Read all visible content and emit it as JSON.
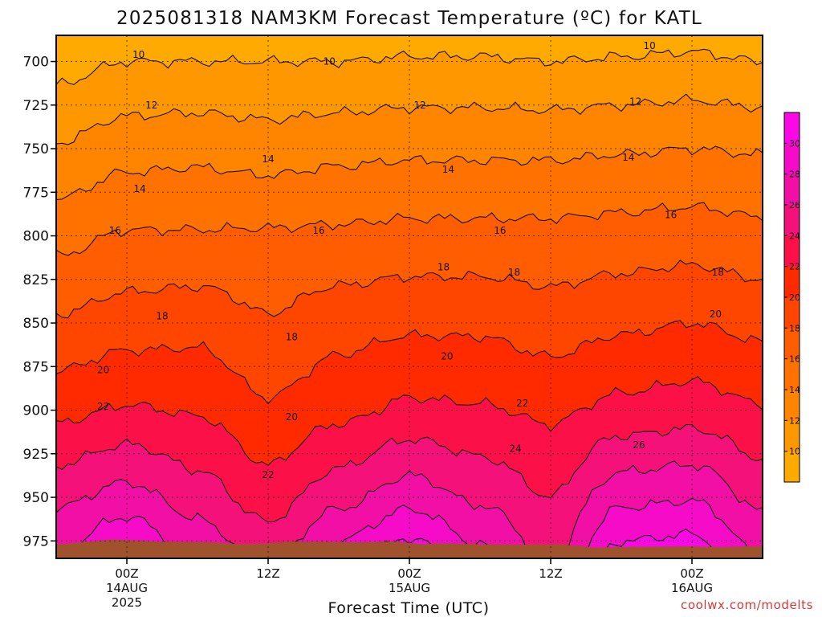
{
  "chart_data": {
    "type": "heatmap",
    "title": "2025081318 NAM3KM Forecast Temperature (ºC) for KATL",
    "xlabel": "Forecast Time (UTC)",
    "ylabel": "",
    "credit": "coolwx.com/modelts",
    "x_hours": [
      -6,
      36
    ],
    "y_pressure_levels": [
      700,
      725,
      750,
      775,
      800,
      825,
      850,
      875,
      900,
      925,
      950,
      975
    ],
    "ylim": [
      685,
      985
    ],
    "x_ticks": [
      {
        "hour": 0,
        "lines": [
          "00Z",
          "14AUG",
          "2025"
        ]
      },
      {
        "hour": 12,
        "lines": [
          "12Z"
        ]
      },
      {
        "hour": 24,
        "lines": [
          "00Z",
          "15AUG"
        ]
      },
      {
        "hour": 36,
        "lines": [
          "12Z"
        ]
      },
      {
        "hour": 48,
        "lines": [
          "00Z",
          "16AUG"
        ]
      }
    ],
    "x_range_hours": [
      -6,
      54
    ],
    "contour_interval": 2,
    "colorbar_levels": [
      10,
      12,
      14,
      16,
      18,
      20,
      22,
      24,
      26,
      28,
      30
    ],
    "colorbar_colors": [
      "#ffaa00",
      "#ff9800",
      "#ff8500",
      "#ff7200",
      "#ff5d00",
      "#ff4600",
      "#ff2a00",
      "#fb1148",
      "#f5117a",
      "#f20fa6",
      "#f50bc8",
      "#fa08e6"
    ],
    "surface_color": "#a0522d",
    "temperature_profiles": [
      {
        "hour": -6,
        "levels": [
          {
            "p": 700,
            "t": 9.2
          },
          {
            "p": 750,
            "t": 12.2
          },
          {
            "p": 800,
            "t": 15.3
          },
          {
            "p": 850,
            "t": 18.3
          },
          {
            "p": 900,
            "t": 21.4
          },
          {
            "p": 950,
            "t": 25.5
          },
          {
            "p": 975,
            "t": 27.4
          }
        ]
      },
      {
        "hour": 0,
        "levels": [
          {
            "p": 700,
            "t": 10.0
          },
          {
            "p": 750,
            "t": 13.2
          },
          {
            "p": 800,
            "t": 16.2
          },
          {
            "p": 850,
            "t": 19.0
          },
          {
            "p": 900,
            "t": 22.2
          },
          {
            "p": 950,
            "t": 26.8
          },
          {
            "p": 975,
            "t": 29.5
          }
        ]
      },
      {
        "hour": 6,
        "levels": [
          {
            "p": 700,
            "t": 10.0
          },
          {
            "p": 750,
            "t": 13.4
          },
          {
            "p": 800,
            "t": 16.2
          },
          {
            "p": 850,
            "t": 19.3
          },
          {
            "p": 900,
            "t": 21.8
          },
          {
            "p": 950,
            "t": 25.0
          },
          {
            "p": 975,
            "t": 27.0
          }
        ]
      },
      {
        "hour": 12,
        "levels": [
          {
            "p": 700,
            "t": 10.0
          },
          {
            "p": 750,
            "t": 13.0
          },
          {
            "p": 800,
            "t": 16.3
          },
          {
            "p": 850,
            "t": 18.2
          },
          {
            "p": 900,
            "t": 20.3
          },
          {
            "p": 950,
            "t": 23.0
          },
          {
            "p": 975,
            "t": 24.8
          }
        ]
      },
      {
        "hour": 18,
        "levels": [
          {
            "p": 700,
            "t": 10.0
          },
          {
            "p": 750,
            "t": 13.4
          },
          {
            "p": 800,
            "t": 16.4
          },
          {
            "p": 850,
            "t": 19.2
          },
          {
            "p": 900,
            "t": 21.4
          },
          {
            "p": 950,
            "t": 25.3
          },
          {
            "p": 975,
            "t": 28.0
          }
        ]
      },
      {
        "hour": 24,
        "levels": [
          {
            "p": 700,
            "t": 10.2
          },
          {
            "p": 750,
            "t": 13.6
          },
          {
            "p": 800,
            "t": 16.6
          },
          {
            "p": 850,
            "t": 19.6
          },
          {
            "p": 900,
            "t": 22.4
          },
          {
            "p": 950,
            "t": 27.2
          },
          {
            "p": 975,
            "t": 30.2
          }
        ]
      },
      {
        "hour": 30,
        "levels": [
          {
            "p": 700,
            "t": 10.2
          },
          {
            "p": 750,
            "t": 13.6
          },
          {
            "p": 800,
            "t": 16.6
          },
          {
            "p": 850,
            "t": 19.6
          },
          {
            "p": 900,
            "t": 22.2
          },
          {
            "p": 950,
            "t": 25.6
          },
          {
            "p": 975,
            "t": 27.8
          }
        ]
      },
      {
        "hour": 36,
        "levels": [
          {
            "p": 700,
            "t": 10.0
          },
          {
            "p": 750,
            "t": 13.6
          },
          {
            "p": 800,
            "t": 16.6
          },
          {
            "p": 850,
            "t": 19.0
          },
          {
            "p": 900,
            "t": 21.6
          },
          {
            "p": 950,
            "t": 24.0
          },
          {
            "p": 975,
            "t": 25.2
          }
        ]
      },
      {
        "hour": 42,
        "levels": [
          {
            "p": 700,
            "t": 10.2
          },
          {
            "p": 750,
            "t": 13.8
          },
          {
            "p": 800,
            "t": 16.8
          },
          {
            "p": 850,
            "t": 19.6
          },
          {
            "p": 900,
            "t": 22.6
          },
          {
            "p": 950,
            "t": 27.4
          },
          {
            "p": 975,
            "t": 30.0
          }
        ]
      },
      {
        "hour": 48,
        "levels": [
          {
            "p": 700,
            "t": 10.4
          },
          {
            "p": 750,
            "t": 14.0
          },
          {
            "p": 800,
            "t": 17.0
          },
          {
            "p": 850,
            "t": 20.0
          },
          {
            "p": 900,
            "t": 23.0
          },
          {
            "p": 950,
            "t": 27.8
          },
          {
            "p": 975,
            "t": 30.4
          }
        ]
      },
      {
        "hour": 54,
        "levels": [
          {
            "p": 700,
            "t": 10.0
          },
          {
            "p": 750,
            "t": 13.8
          },
          {
            "p": 800,
            "t": 16.6
          },
          {
            "p": 850,
            "t": 19.4
          },
          {
            "p": 900,
            "t": 22.2
          },
          {
            "p": 950,
            "t": 25.4
          },
          {
            "p": 975,
            "t": 27.2
          }
        ]
      }
    ],
    "contour_labels": [
      {
        "text": "10",
        "hour": 1.0,
        "p": 696
      },
      {
        "text": "10",
        "hour": 17.2,
        "p": 700
      },
      {
        "text": "10",
        "hour": 44.4,
        "p": 691
      },
      {
        "text": "12",
        "hour": 2.1,
        "p": 725
      },
      {
        "text": "12",
        "hour": 24.9,
        "p": 725
      },
      {
        "text": "12",
        "hour": 43.2,
        "p": 723
      },
      {
        "text": "14",
        "hour": 1.1,
        "p": 773
      },
      {
        "text": "14",
        "hour": 12.0,
        "p": 756
      },
      {
        "text": "14",
        "hour": 27.3,
        "p": 762
      },
      {
        "text": "14",
        "hour": 42.6,
        "p": 755
      },
      {
        "text": "16",
        "hour": -1.0,
        "p": 797
      },
      {
        "text": "16",
        "hour": 16.3,
        "p": 797
      },
      {
        "text": "16",
        "hour": 31.7,
        "p": 797
      },
      {
        "text": "16",
        "hour": 46.2,
        "p": 788
      },
      {
        "text": "18",
        "hour": 3.0,
        "p": 846
      },
      {
        "text": "18",
        "hour": 14.0,
        "p": 858
      },
      {
        "text": "18",
        "hour": 26.9,
        "p": 818
      },
      {
        "text": "18",
        "hour": 32.9,
        "p": 821
      },
      {
        "text": "18",
        "hour": 50.2,
        "p": 821
      },
      {
        "text": "20",
        "hour": -2.0,
        "p": 877
      },
      {
        "text": "20",
        "hour": 14.0,
        "p": 904
      },
      {
        "text": "20",
        "hour": 27.2,
        "p": 869
      },
      {
        "text": "20",
        "hour": 50.0,
        "p": 845
      },
      {
        "text": "22",
        "hour": -2.0,
        "p": 898
      },
      {
        "text": "22",
        "hour": 12.0,
        "p": 937
      },
      {
        "text": "22",
        "hour": 33.6,
        "p": 896
      },
      {
        "text": "24",
        "hour": 33.0,
        "p": 922
      },
      {
        "text": "26",
        "hour": 43.5,
        "p": 920
      }
    ]
  }
}
